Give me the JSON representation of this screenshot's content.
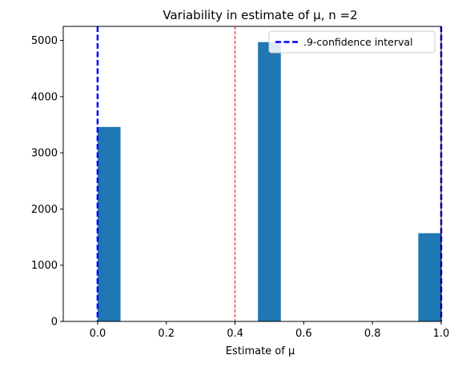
{
  "chart_data": {
    "type": "bar",
    "title": "Variability in estimate of μ, n =2",
    "xlabel": "Estimate of μ",
    "ylabel": "",
    "xlim": [
      -0.1,
      1.0
    ],
    "ylim": [
      0,
      5250
    ],
    "xticks": [
      "0.0",
      "0.2",
      "0.4",
      "0.6",
      "0.8",
      "1.0"
    ],
    "yticks": [
      "0",
      "1000",
      "2000",
      "3000",
      "4000",
      "5000"
    ],
    "histogram": {
      "color": "#1f77b4",
      "bins": [
        {
          "x0": 0.0,
          "x1": 0.0667,
          "value": 3460
        },
        {
          "x0": 0.4667,
          "x1": 0.5333,
          "value": 4970
        },
        {
          "x0": 0.9333,
          "x1": 1.0,
          "value": 1570
        }
      ]
    },
    "confidence_interval": {
      "label": ".9-confidence interval",
      "color": "#0000ff",
      "lower": 0.0,
      "upper": 1.0
    },
    "red_line": {
      "x": 0.4,
      "color": "#ff0000"
    },
    "legend": {
      "position": "top-right",
      "entries": [
        ".9-confidence interval"
      ]
    },
    "grid": false
  }
}
